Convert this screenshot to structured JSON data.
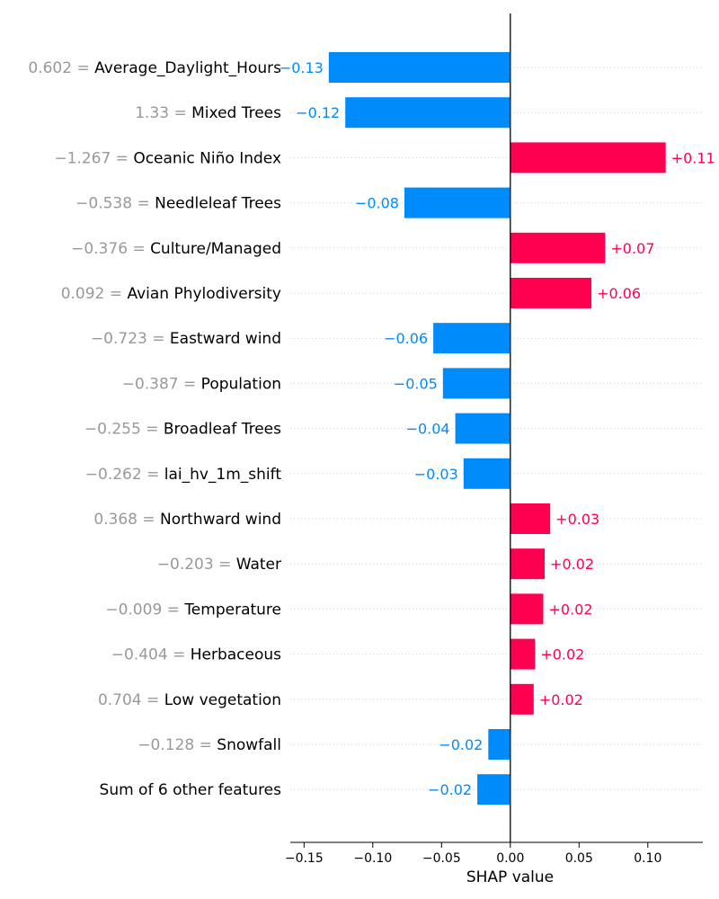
{
  "chart_data": {
    "type": "bar",
    "orientation": "horizontal",
    "xlabel": "SHAP value",
    "xlim": [
      -0.16,
      0.14
    ],
    "xticks": [
      -0.15,
      -0.1,
      -0.05,
      0.0,
      0.05,
      0.1
    ],
    "xtick_labels": [
      "−0.15",
      "−0.10",
      "−0.05",
      "0.00",
      "0.05",
      "0.10"
    ],
    "colors": {
      "positive": "#ff0051",
      "negative": "#008bfb",
      "feature_value": "#999999",
      "gridline": "#cccccc"
    },
    "features": [
      {
        "feature_value": "0.602",
        "name": "Average_Daylight_Hours",
        "value": -0.132,
        "label": "−0.13"
      },
      {
        "feature_value": "1.33",
        "name": "Mixed Trees",
        "value": -0.12,
        "label": "−0.12"
      },
      {
        "feature_value": "−1.267",
        "name": "Oceanic Niño Index",
        "value": 0.113,
        "label": "+0.11"
      },
      {
        "feature_value": "−0.538",
        "name": "Needleleaf Trees",
        "value": -0.077,
        "label": "−0.08"
      },
      {
        "feature_value": "−0.376",
        "name": "Culture/Managed",
        "value": 0.069,
        "label": "+0.07"
      },
      {
        "feature_value": "0.092",
        "name": "Avian Phylodiversity",
        "value": 0.059,
        "label": "+0.06"
      },
      {
        "feature_value": "−0.723",
        "name": "Eastward wind",
        "value": -0.056,
        "label": "−0.06"
      },
      {
        "feature_value": "−0.387",
        "name": "Population",
        "value": -0.049,
        "label": "−0.05"
      },
      {
        "feature_value": "−0.255",
        "name": "Broadleaf Trees",
        "value": -0.04,
        "label": "−0.04"
      },
      {
        "feature_value": "−0.262",
        "name": "lai_hv_1m_shift",
        "value": -0.034,
        "label": "−0.03"
      },
      {
        "feature_value": "0.368",
        "name": "Northward wind",
        "value": 0.029,
        "label": "+0.03"
      },
      {
        "feature_value": "−0.203",
        "name": "Water",
        "value": 0.025,
        "label": "+0.02"
      },
      {
        "feature_value": "−0.009",
        "name": "Temperature",
        "value": 0.024,
        "label": "+0.02"
      },
      {
        "feature_value": "−0.404",
        "name": "Herbaceous",
        "value": 0.018,
        "label": "+0.02"
      },
      {
        "feature_value": "0.704",
        "name": "Low vegetation",
        "value": 0.017,
        "label": "+0.02"
      },
      {
        "feature_value": "−0.128",
        "name": "Snowfall",
        "value": -0.016,
        "label": "−0.02"
      },
      {
        "feature_value": "",
        "name": "Sum of 6 other features",
        "value": -0.024,
        "label": "−0.02"
      }
    ]
  }
}
